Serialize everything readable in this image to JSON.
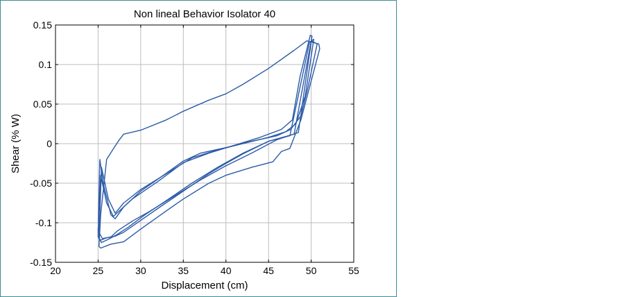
{
  "chart_data": {
    "type": "line",
    "title": "Non lineal Behavior Isolator 40",
    "xlabel": "Displacement (cm)",
    "ylabel": "Shear (% W)",
    "xlim": [
      20,
      55
    ],
    "ylim": [
      -0.15,
      0.15
    ],
    "x_ticks": [
      "20",
      "25",
      "30",
      "35",
      "40",
      "45",
      "50",
      "55"
    ],
    "y_ticks": [
      "0.15",
      "0.1",
      "0.05",
      "0",
      "-0.05",
      "-0.1",
      "-0.15"
    ],
    "grid": true,
    "line_color": "#2b5aa8",
    "series": [
      {
        "x": [
          25.0,
          25.3,
          26.0,
          27.0,
          28.0,
          30.0,
          32.0,
          35.0,
          38.0,
          40.0,
          42.0,
          45.0,
          48.0,
          50.0,
          50.7,
          49.6,
          48.8,
          47.6,
          46.0,
          43.0,
          40.0,
          37.0,
          35.0,
          32.0,
          30.0,
          28.0,
          27.0,
          26.5,
          25.6,
          25.2,
          25.0
        ],
        "y": [
          -0.118,
          -0.122,
          -0.119,
          -0.117,
          -0.112,
          -0.097,
          -0.082,
          -0.06,
          -0.038,
          -0.025,
          -0.013,
          0.003,
          0.012,
          0.13,
          0.126,
          0.07,
          0.035,
          0.018,
          0.01,
          0.003,
          -0.005,
          -0.012,
          -0.022,
          -0.045,
          -0.06,
          -0.08,
          -0.095,
          -0.09,
          -0.05,
          -0.02,
          -0.118
        ]
      },
      {
        "x": [
          25.1,
          25.4,
          26.2,
          27.2,
          28.5,
          30.5,
          33.0,
          36.0,
          39.0,
          42.0,
          45.0,
          47.5,
          49.8,
          50.3,
          49.3,
          48.2,
          47.0,
          45.0,
          42.0,
          39.0,
          36.0,
          33.0,
          30.0,
          28.0,
          27.0,
          26.2,
          25.4,
          25.1
        ],
        "y": [
          -0.12,
          -0.125,
          -0.121,
          -0.115,
          -0.106,
          -0.09,
          -0.072,
          -0.05,
          -0.03,
          -0.012,
          0.003,
          0.01,
          0.128,
          0.132,
          0.06,
          0.025,
          0.015,
          0.008,
          0.0,
          -0.008,
          -0.018,
          -0.038,
          -0.058,
          -0.075,
          -0.088,
          -0.07,
          -0.03,
          -0.12
        ]
      },
      {
        "x": [
          25.1,
          25.3,
          26.5,
          28.0,
          30.0,
          33.0,
          35.0,
          38.0,
          40.0,
          43.0,
          45.5,
          46.5,
          47.5,
          48.8,
          51.0,
          50.9,
          49.5,
          48.0,
          45.0,
          42.0,
          40.0,
          38.0,
          35.0,
          33.0,
          30.0,
          28.0,
          27.5,
          27.0,
          26.0,
          25.3,
          25.1
        ],
        "y": [
          -0.13,
          -0.132,
          -0.127,
          -0.124,
          -0.108,
          -0.085,
          -0.07,
          -0.05,
          -0.04,
          -0.03,
          -0.023,
          -0.01,
          -0.006,
          0.03,
          0.12,
          0.126,
          0.13,
          0.118,
          0.095,
          0.075,
          0.063,
          0.055,
          0.041,
          0.03,
          0.017,
          0.012,
          0.005,
          -0.003,
          -0.02,
          -0.09,
          -0.13
        ]
      },
      {
        "x": [
          25.0,
          25.5,
          26.5,
          27.3,
          29.0,
          31.0,
          34.0,
          37.0,
          40.0,
          43.0,
          46.0,
          48.5,
          50.1,
          49.9,
          48.7,
          47.8,
          46.5,
          44.0,
          41.0,
          38.0,
          35.0,
          32.0,
          29.0,
          27.5,
          26.8,
          26.0,
          25.3,
          25.0
        ],
        "y": [
          -0.11,
          -0.12,
          -0.118,
          -0.11,
          -0.098,
          -0.086,
          -0.066,
          -0.046,
          -0.028,
          -0.012,
          0.005,
          0.014,
          0.136,
          0.137,
          0.085,
          0.03,
          0.018,
          0.008,
          -0.002,
          -0.012,
          -0.024,
          -0.048,
          -0.07,
          -0.085,
          -0.092,
          -0.075,
          -0.04,
          -0.11
        ]
      }
    ]
  }
}
